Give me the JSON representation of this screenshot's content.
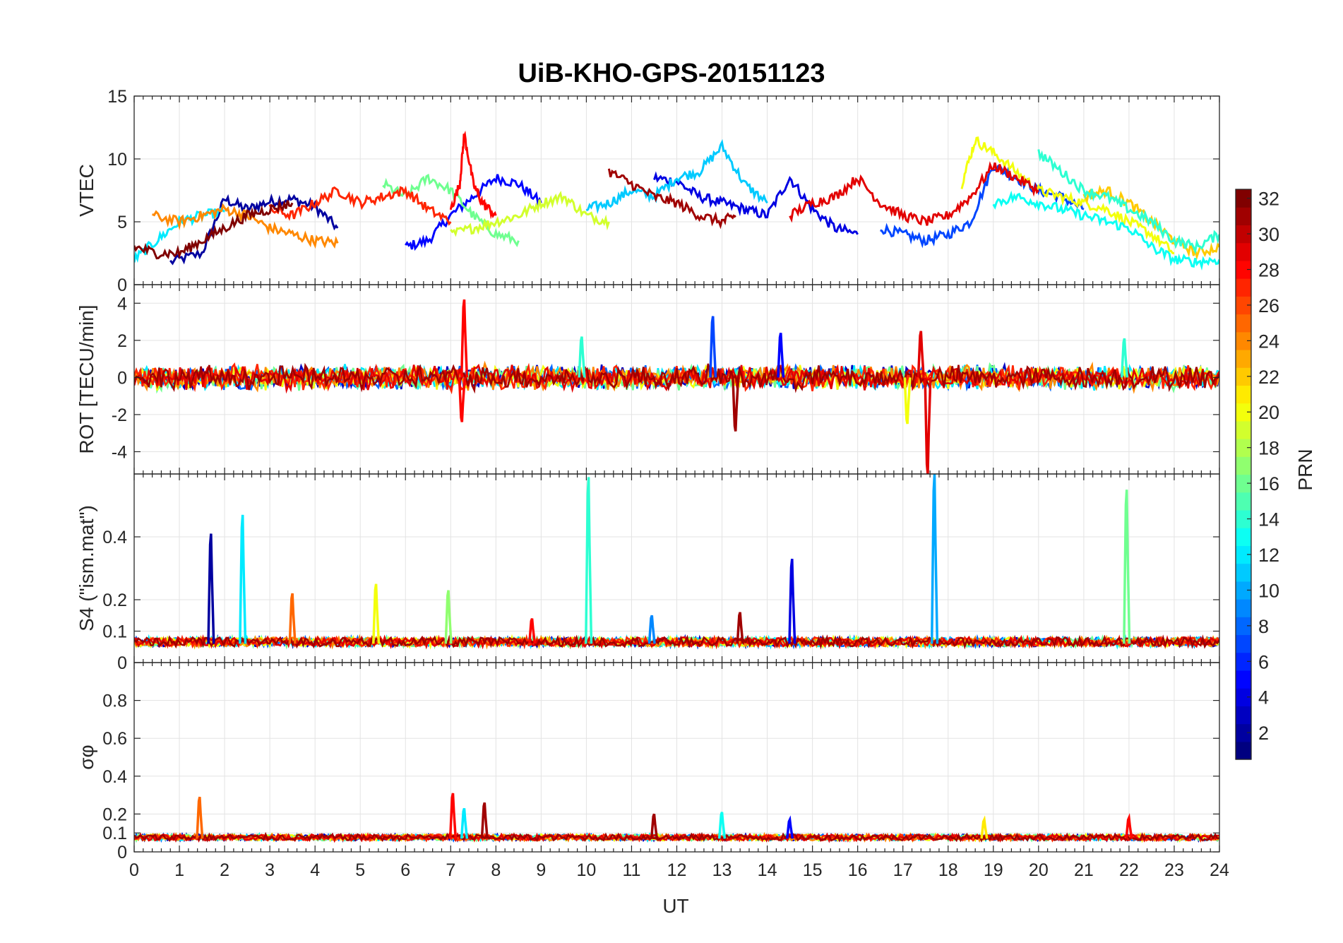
{
  "chart_data": {
    "type": "line",
    "title": "UiB-KHO-GPS-20151123",
    "xlabel": "UT",
    "xlim": [
      0,
      24
    ],
    "x_ticks": [
      "0",
      "1",
      "2",
      "3",
      "4",
      "5",
      "6",
      "7",
      "8",
      "9",
      "10",
      "11",
      "12",
      "13",
      "14",
      "15",
      "16",
      "17",
      "18",
      "19",
      "20",
      "21",
      "22",
      "23",
      "24"
    ],
    "colorbar": {
      "label": "PRN",
      "range": [
        1,
        32
      ],
      "ticks": [
        "2",
        "4",
        "6",
        "8",
        "10",
        "12",
        "14",
        "16",
        "18",
        "20",
        "22",
        "24",
        "26",
        "28",
        "30",
        "32"
      ],
      "colormap": "jet"
    },
    "panels": [
      {
        "ylabel": "VTEC",
        "ylim": [
          0,
          15
        ],
        "yticks": [
          "0",
          "5",
          "10",
          "15"
        ],
        "series": [
          {
            "prn": 2,
            "x": [
              0.8,
              1.5,
              2.0,
              2.5,
              3.0,
              3.5,
              4.0,
              4.5
            ],
            "y": [
              1.8,
              2.5,
              6.8,
              6.0,
              6.6,
              6.8,
              6.2,
              4.5
            ]
          },
          {
            "prn": 5,
            "x": [
              6.0,
              6.5,
              7.0,
              7.5,
              8.0,
              8.5,
              9.0
            ],
            "y": [
              3.0,
              3.5,
              5.5,
              7.0,
              8.5,
              8.0,
              6.5
            ]
          },
          {
            "prn": 4,
            "x": [
              11.5,
              12.0,
              12.5,
              13.0,
              13.5,
              14.0,
              14.5,
              15.0,
              15.5,
              16.0
            ],
            "y": [
              8.5,
              8.2,
              7.0,
              6.5,
              6.0,
              5.5,
              8.5,
              6.0,
              4.5,
              4.0
            ]
          },
          {
            "prn": 7,
            "x": [
              16.5,
              17.0,
              17.5,
              18.0,
              18.5,
              19.0,
              19.5,
              20.0,
              20.5,
              21.0
            ],
            "y": [
              4.5,
              4.0,
              3.5,
              4.0,
              5.0,
              9.5,
              8.5,
              7.5,
              7.0,
              6.0
            ]
          },
          {
            "prn": 11,
            "x": [
              10.0,
              10.5,
              11.0,
              11.5,
              12.0,
              12.5,
              13.0,
              13.5,
              14.0
            ],
            "y": [
              6.0,
              6.5,
              7.5,
              7.0,
              8.5,
              9.0,
              11.0,
              8.0,
              6.5
            ]
          },
          {
            "prn": 12,
            "x": [
              0.0,
              0.5,
              1.0,
              1.5,
              2.0
            ],
            "y": [
              2.0,
              3.5,
              5.0,
              5.5,
              5.8
            ]
          },
          {
            "prn": 16,
            "x": [
              5.5,
              6.0,
              6.5,
              7.0,
              7.5,
              8.0,
              8.5
            ],
            "y": [
              8.0,
              7.0,
              8.5,
              7.5,
              5.5,
              4.0,
              3.5
            ]
          },
          {
            "prn": 19,
            "x": [
              7.0,
              7.5,
              8.0,
              8.5,
              9.0,
              9.5,
              10.0,
              10.5
            ],
            "y": [
              4.0,
              4.5,
              5.0,
              5.5,
              6.5,
              7.0,
              5.5,
              5.0
            ]
          },
          {
            "prn": 20,
            "x": [
              18.3,
              18.6,
              19.0,
              19.5,
              20.0,
              20.5,
              21.0,
              21.5,
              22.0,
              22.5,
              23.0
            ],
            "y": [
              8.0,
              11.5,
              10.5,
              9.0,
              7.5,
              7.0,
              6.5,
              6.0,
              5.0,
              4.0,
              2.5
            ]
          },
          {
            "prn": 24,
            "x": [
              0.4,
              1.0,
              1.5,
              2.0,
              2.5,
              3.0,
              3.5,
              4.0,
              4.5
            ],
            "y": [
              5.5,
              5.0,
              5.5,
              6.0,
              5.5,
              4.5,
              4.0,
              3.5,
              3.3
            ]
          },
          {
            "prn": 28,
            "x": [
              7.0,
              7.2,
              7.3,
              7.5,
              7.7,
              8.0
            ],
            "y": [
              6.0,
              8.0,
              12.0,
              8.0,
              6.5,
              5.5
            ]
          },
          {
            "prn": 27,
            "x": [
              3.0,
              3.5,
              4.0,
              4.5,
              5.0,
              5.5,
              6.0,
              6.5,
              7.0
            ],
            "y": [
              6.0,
              5.5,
              6.5,
              7.5,
              6.5,
              7.0,
              7.5,
              6.0,
              5.0
            ]
          },
          {
            "prn": 29,
            "x": [
              14.5,
              15.0,
              15.5,
              16.0,
              16.5,
              17.0,
              17.5,
              18.0,
              18.5,
              19.0,
              19.5,
              20.0
            ],
            "y": [
              5.5,
              6.5,
              7.0,
              8.5,
              6.5,
              5.5,
              5.0,
              5.5,
              7.0,
              9.5,
              8.5,
              7.5
            ]
          },
          {
            "prn": 31,
            "x": [
              10.5,
              11.0,
              11.5,
              12.0,
              12.5,
              13.0,
              13.3
            ],
            "y": [
              9.0,
              8.0,
              7.0,
              6.5,
              5.5,
              5.0,
              5.5
            ]
          },
          {
            "prn": 32,
            "x": [
              0.0,
              0.5,
              1.0,
              1.5,
              2.0,
              2.5,
              3.0,
              3.5
            ],
            "y": [
              3.0,
              2.5,
              2.5,
              3.5,
              4.5,
              5.5,
              6.0,
              6.5
            ]
          },
          {
            "prn": 22,
            "x": [
              21.0,
              21.5,
              22.0,
              22.5,
              23.0,
              23.5,
              24.0
            ],
            "y": [
              7.0,
              7.5,
              6.5,
              5.0,
              3.5,
              2.5,
              3.0
            ]
          },
          {
            "prn": 14,
            "x": [
              20.0,
              20.5,
              21.0,
              21.5,
              22.0,
              22.5,
              23.0,
              23.5,
              24.0
            ],
            "y": [
              10.5,
              9.0,
              7.5,
              7.0,
              6.0,
              5.0,
              3.5,
              3.0,
              4.0
            ]
          },
          {
            "prn": 13,
            "x": [
              19.0,
              19.5,
              20.0,
              20.5,
              21.0,
              21.5,
              22.0,
              22.5,
              23.0,
              23.5,
              24.0
            ],
            "y": [
              6.5,
              7.0,
              6.5,
              6.0,
              5.5,
              5.0,
              4.5,
              3.0,
              2.0,
              1.8,
              2.0
            ]
          }
        ]
      },
      {
        "ylabel": "ROT [TECU/min]",
        "ylim": [
          -5.2,
          5.0
        ],
        "yticks": [
          "-4",
          "-2",
          "0",
          "2",
          "4"
        ],
        "spikes": [
          {
            "prn": 28,
            "x": 7.3,
            "y": 4.2
          },
          {
            "prn": 28,
            "x": 7.25,
            "y": -2.4
          },
          {
            "prn": 7,
            "x": 12.8,
            "y": 3.3
          },
          {
            "prn": 31,
            "x": 13.3,
            "y": -2.9
          },
          {
            "prn": 5,
            "x": 14.3,
            "y": 2.4
          },
          {
            "prn": 29,
            "x": 17.4,
            "y": 2.5
          },
          {
            "prn": 29,
            "x": 17.55,
            "y": -5.2
          },
          {
            "prn": 20,
            "x": 17.1,
            "y": -2.5
          },
          {
            "prn": 14,
            "x": 9.9,
            "y": 2.2
          },
          {
            "prn": 14,
            "x": 21.9,
            "y": 2.1
          }
        ]
      },
      {
        "ylabel": "S4 (\"ism.mat\")",
        "ylim": [
          0,
          0.6
        ],
        "yticks": [
          "0",
          "0.1",
          "0.2",
          "0.4"
        ],
        "spikes": [
          {
            "prn": 2,
            "x": 1.7,
            "y": 0.41
          },
          {
            "prn": 12,
            "x": 2.4,
            "y": 0.47
          },
          {
            "prn": 25,
            "x": 3.5,
            "y": 0.22
          },
          {
            "prn": 20,
            "x": 5.35,
            "y": 0.25
          },
          {
            "prn": 17,
            "x": 6.95,
            "y": 0.23
          },
          {
            "prn": 14,
            "x": 10.05,
            "y": 0.59
          },
          {
            "prn": 9,
            "x": 11.45,
            "y": 0.15
          },
          {
            "prn": 31,
            "x": 13.4,
            "y": 0.16
          },
          {
            "prn": 4,
            "x": 14.55,
            "y": 0.33
          },
          {
            "prn": 10,
            "x": 17.7,
            "y": 0.6
          },
          {
            "prn": 16,
            "x": 21.95,
            "y": 0.55
          },
          {
            "prn": 28,
            "x": 8.8,
            "y": 0.14
          }
        ]
      },
      {
        "ylabel": "σφ",
        "ylim": [
          0,
          1.0
        ],
        "yticks": [
          "0",
          "0.1",
          "0.2",
          "0.4",
          "0.6",
          "0.8"
        ],
        "spikes": [
          {
            "prn": 25,
            "x": 1.45,
            "y": 0.29
          },
          {
            "prn": 28,
            "x": 7.05,
            "y": 0.31
          },
          {
            "prn": 31,
            "x": 7.75,
            "y": 0.26
          },
          {
            "prn": 12,
            "x": 7.3,
            "y": 0.23
          },
          {
            "prn": 31,
            "x": 11.5,
            "y": 0.2
          },
          {
            "prn": 13,
            "x": 13.0,
            "y": 0.21
          },
          {
            "prn": 5,
            "x": 14.5,
            "y": 0.17
          },
          {
            "prn": 21,
            "x": 18.8,
            "y": 0.17
          },
          {
            "prn": 28,
            "x": 22.0,
            "y": 0.18
          }
        ]
      }
    ]
  }
}
